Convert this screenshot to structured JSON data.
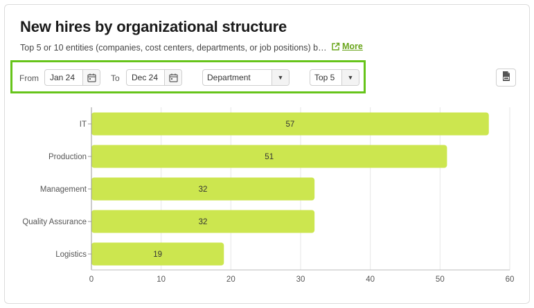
{
  "header": {
    "title": "New hires by organizational structure",
    "subtitle": "Top 5 or 10 entities (companies, cost centers, departments, or job positions) b…",
    "more_label": "More"
  },
  "filters": {
    "from_label": "From",
    "from_value": "Jan 24",
    "to_label": "To",
    "to_value": "Dec 24",
    "group_by": "Department",
    "top_n": "Top 5",
    "highlight_color": "#66c41a"
  },
  "export": {
    "icon": "jpg-export-icon"
  },
  "chart_data": {
    "type": "bar",
    "orientation": "horizontal",
    "title": "",
    "xlabel": "",
    "ylabel": "",
    "categories": [
      "IT",
      "Production",
      "Management",
      "Quality Assurance",
      "Logistics"
    ],
    "values": [
      57,
      51,
      32,
      32,
      19
    ],
    "xlim": [
      0,
      60
    ],
    "xticks": [
      0,
      10,
      20,
      30,
      40,
      50,
      60
    ],
    "bar_color": "#cce64f",
    "grid": "vertical",
    "legend": "none"
  }
}
